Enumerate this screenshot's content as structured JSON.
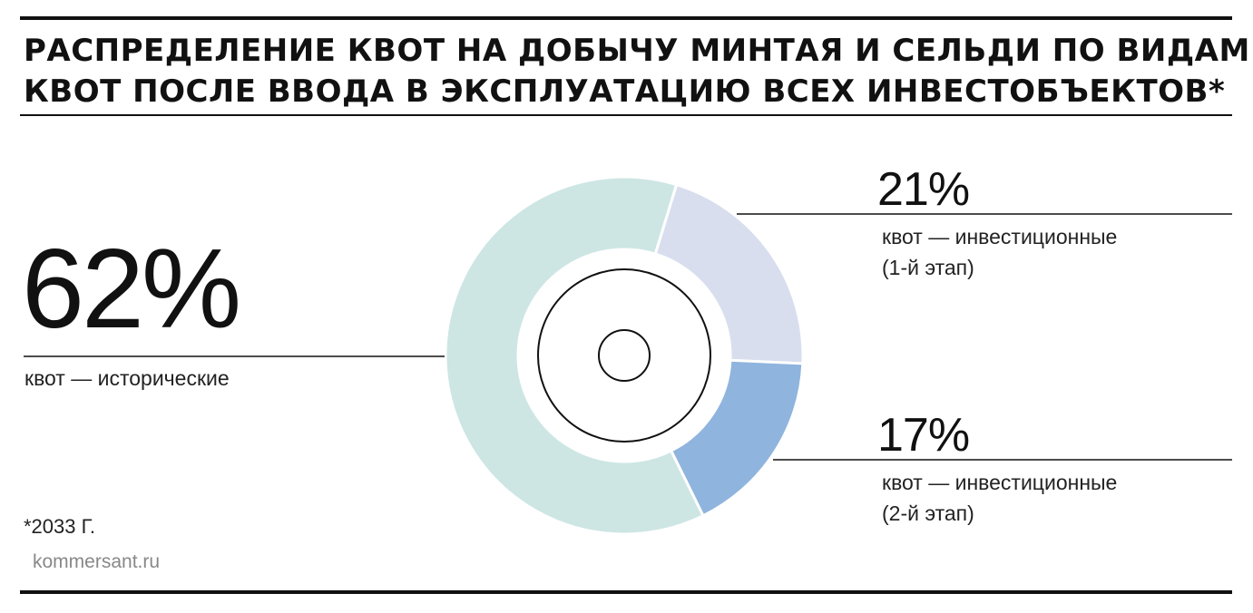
{
  "title": {
    "line1": "РАСПРЕДЕЛЕНИЕ КВОТ НА ДОБЫЧУ МИНТАЯ И СЕЛЬДИ ПО ВИДАМ",
    "line2": "КВОТ ПОСЛЕ ВВОДА В ЭКСПЛУАТАЦИЮ ВСЕХ ИНВЕСТОБЪЕКТОВ*"
  },
  "chart_data": {
    "type": "pie",
    "title": "РАСПРЕДЕЛЕНИЕ КВОТ НА ДОБЫЧУ МИНТАЯ И СЕЛЬДИ ПО ВИДАМ КВОТ ПОСЛЕ ВВОДА В ЭКСПЛУАТАЦИЮ ВСЕХ ИНВЕСТОБЪЕКТОВ*",
    "unit": "%",
    "slices": [
      {
        "key": "hist",
        "value": 62,
        "value_label": "62%",
        "label_line1": "квот — исторические",
        "label_line2": "",
        "color": "#cde6e4"
      },
      {
        "key": "inv1",
        "value": 21,
        "value_label": "21%",
        "label_line1": "квот — инвестиционные",
        "label_line2": "(1-й этап)",
        "color": "#d8deee"
      },
      {
        "key": "inv2",
        "value": 17,
        "value_label": "17%",
        "label_line1": "квот — инвестиционные",
        "label_line2": "(2-й этап)",
        "color": "#8fb4de"
      }
    ]
  },
  "footnote": "*2033 Г.",
  "source": "kommersant.ru",
  "colors": {
    "text": "#111111",
    "rule": "#111111",
    "source_text": "#888888"
  }
}
